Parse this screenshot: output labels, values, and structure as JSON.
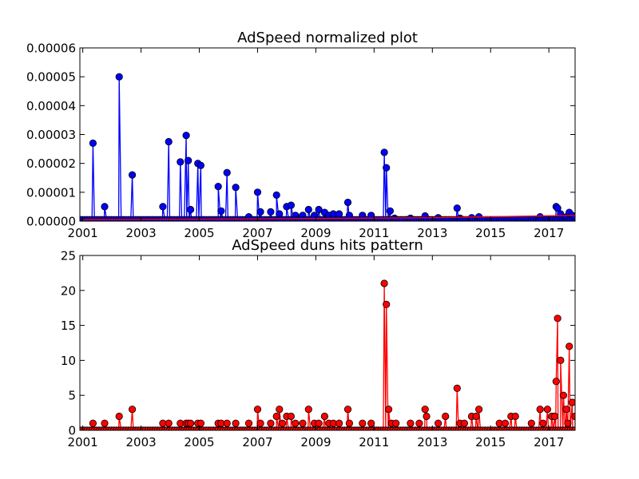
{
  "chart_data": [
    {
      "type": "line",
      "title": "AdSpeed normalized plot",
      "xlim": [
        2000.9,
        2017.9
      ],
      "ylim": [
        0,
        6e-05
      ],
      "x_ticks": [
        {
          "value": 2001,
          "label": "2001"
        },
        {
          "value": 2003,
          "label": "2003"
        },
        {
          "value": 2005,
          "label": "2005"
        },
        {
          "value": 2007,
          "label": "2007"
        },
        {
          "value": 2009,
          "label": "2009"
        },
        {
          "value": 2011,
          "label": "2011"
        },
        {
          "value": 2013,
          "label": "2013"
        },
        {
          "value": 2015,
          "label": "2015"
        },
        {
          "value": 2017,
          "label": "2017"
        }
      ],
      "y_ticks": [
        {
          "value": 0,
          "label": "0.00000"
        },
        {
          "value": 1e-05,
          "label": "0.00001"
        },
        {
          "value": 2e-05,
          "label": "0.00002"
        },
        {
          "value": 3e-05,
          "label": "0.00003"
        },
        {
          "value": 4e-05,
          "label": "0.00004"
        },
        {
          "value": 5e-05,
          "label": "0.00005"
        },
        {
          "value": 6e-05,
          "label": "0.00006"
        }
      ],
      "series": [
        {
          "color": "#0000ff",
          "marker": "circle",
          "x": [
            2001.35,
            2001.75,
            2002.25,
            2002.7,
            2003.75,
            2003.95,
            2004.35,
            2004.55,
            2004.62,
            2004.7,
            2004.95,
            2005.05,
            2005.65,
            2005.75,
            2005.95,
            2006.25,
            2006.7,
            2007.0,
            2007.1,
            2007.45,
            2007.65,
            2007.75,
            2008.0,
            2008.15,
            2008.3,
            2008.55,
            2008.75,
            2008.95,
            2009.1,
            2009.3,
            2009.45,
            2009.6,
            2009.8,
            2010.1,
            2010.15,
            2010.6,
            2010.9,
            2011.35,
            2011.42,
            2011.55,
            2011.7,
            2012.25,
            2012.75,
            2013.2,
            2013.85,
            2013.95,
            2014.35,
            2014.6,
            2016.7,
            2017.25,
            2017.3,
            2017.4,
            2017.6,
            2017.7,
            2017.8,
            2017.9
          ],
          "y": [
            2.7e-05,
            5e-06,
            5e-05,
            1.6e-05,
            5e-06,
            2.75e-05,
            2.05e-05,
            2.97e-05,
            2.1e-05,
            4e-06,
            2e-05,
            1.93e-05,
            1.2e-05,
            3.5e-06,
            1.68e-05,
            1.17e-05,
            1.5e-06,
            1e-05,
            3.2e-06,
            3.2e-06,
            9e-06,
            2.5e-06,
            5e-06,
            5.5e-06,
            2e-06,
            2e-06,
            4e-06,
            2e-06,
            4e-06,
            3e-06,
            2e-06,
            2.5e-06,
            2.5e-06,
            6.5e-06,
            2e-06,
            2e-06,
            2e-06,
            2.38e-05,
            1.85e-05,
            3.5e-06,
            1e-06,
            1e-06,
            1.8e-06,
            1.2e-06,
            4.5e-06,
            1e-06,
            1.2e-06,
            1.5e-06,
            1.5e-06,
            5e-06,
            4.5e-06,
            2.5e-06,
            1.5e-06,
            3e-06,
            2e-06,
            1.5e-06
          ],
          "baseline": 5e-07
        },
        {
          "color": "#ff0000",
          "marker": "none",
          "x": [
            2001.0,
            2005.0,
            2009.0,
            2013.0,
            2017.9
          ],
          "y": [
            5e-07,
            7e-07,
            9e-07,
            1.2e-06,
            2e-06
          ]
        }
      ]
    },
    {
      "type": "line",
      "title": "AdSpeed duns hits pattern",
      "xlim": [
        2000.9,
        2017.9
      ],
      "ylim": [
        0,
        25
      ],
      "x_ticks": [
        {
          "value": 2001,
          "label": "2001"
        },
        {
          "value": 2003,
          "label": "2003"
        },
        {
          "value": 2005,
          "label": "2005"
        },
        {
          "value": 2007,
          "label": "2007"
        },
        {
          "value": 2009,
          "label": "2009"
        },
        {
          "value": 2011,
          "label": "2011"
        },
        {
          "value": 2013,
          "label": "2013"
        },
        {
          "value": 2015,
          "label": "2015"
        },
        {
          "value": 2017,
          "label": "2017"
        }
      ],
      "y_ticks": [
        {
          "value": 0,
          "label": "0"
        },
        {
          "value": 5,
          "label": "5"
        },
        {
          "value": 10,
          "label": "10"
        },
        {
          "value": 15,
          "label": "15"
        },
        {
          "value": 20,
          "label": "20"
        },
        {
          "value": 25,
          "label": "25"
        }
      ],
      "series": [
        {
          "color": "#ff0000",
          "marker": "circle",
          "x": [
            2001.35,
            2001.75,
            2002.25,
            2002.7,
            2003.75,
            2003.95,
            2004.35,
            2004.55,
            2004.62,
            2004.7,
            2004.95,
            2005.05,
            2005.65,
            2005.75,
            2005.95,
            2006.25,
            2006.7,
            2007.0,
            2007.1,
            2007.45,
            2007.65,
            2007.75,
            2007.85,
            2008.0,
            2008.15,
            2008.3,
            2008.55,
            2008.75,
            2008.95,
            2009.1,
            2009.3,
            2009.45,
            2009.6,
            2009.8,
            2010.1,
            2010.15,
            2010.6,
            2010.9,
            2011.35,
            2011.42,
            2011.5,
            2011.6,
            2011.75,
            2012.25,
            2012.55,
            2012.75,
            2012.8,
            2013.2,
            2013.45,
            2013.85,
            2013.95,
            2014.1,
            2014.35,
            2014.5,
            2014.6,
            2015.3,
            2015.5,
            2015.7,
            2015.85,
            2016.4,
            2016.7,
            2016.8,
            2016.95,
            2017.1,
            2017.2,
            2017.25,
            2017.3,
            2017.4,
            2017.5,
            2017.6,
            2017.65,
            2017.7,
            2017.8,
            2017.9
          ],
          "y": [
            1,
            1,
            2,
            3,
            1,
            1,
            1,
            1,
            1,
            1,
            1,
            1,
            1,
            1,
            1,
            1,
            1,
            3,
            1,
            1,
            2,
            3,
            1,
            2,
            2,
            1,
            1,
            3,
            1,
            1,
            2,
            1,
            1,
            1,
            3,
            1,
            1,
            1,
            21,
            18,
            3,
            1,
            1,
            1,
            1,
            3,
            2,
            1,
            2,
            6,
            1,
            1,
            2,
            2,
            3,
            1,
            1,
            2,
            2,
            1,
            3,
            1,
            3,
            2,
            2,
            7,
            16,
            10,
            5,
            3,
            1,
            12,
            4,
            2
          ],
          "baseline": 0
        }
      ]
    }
  ]
}
